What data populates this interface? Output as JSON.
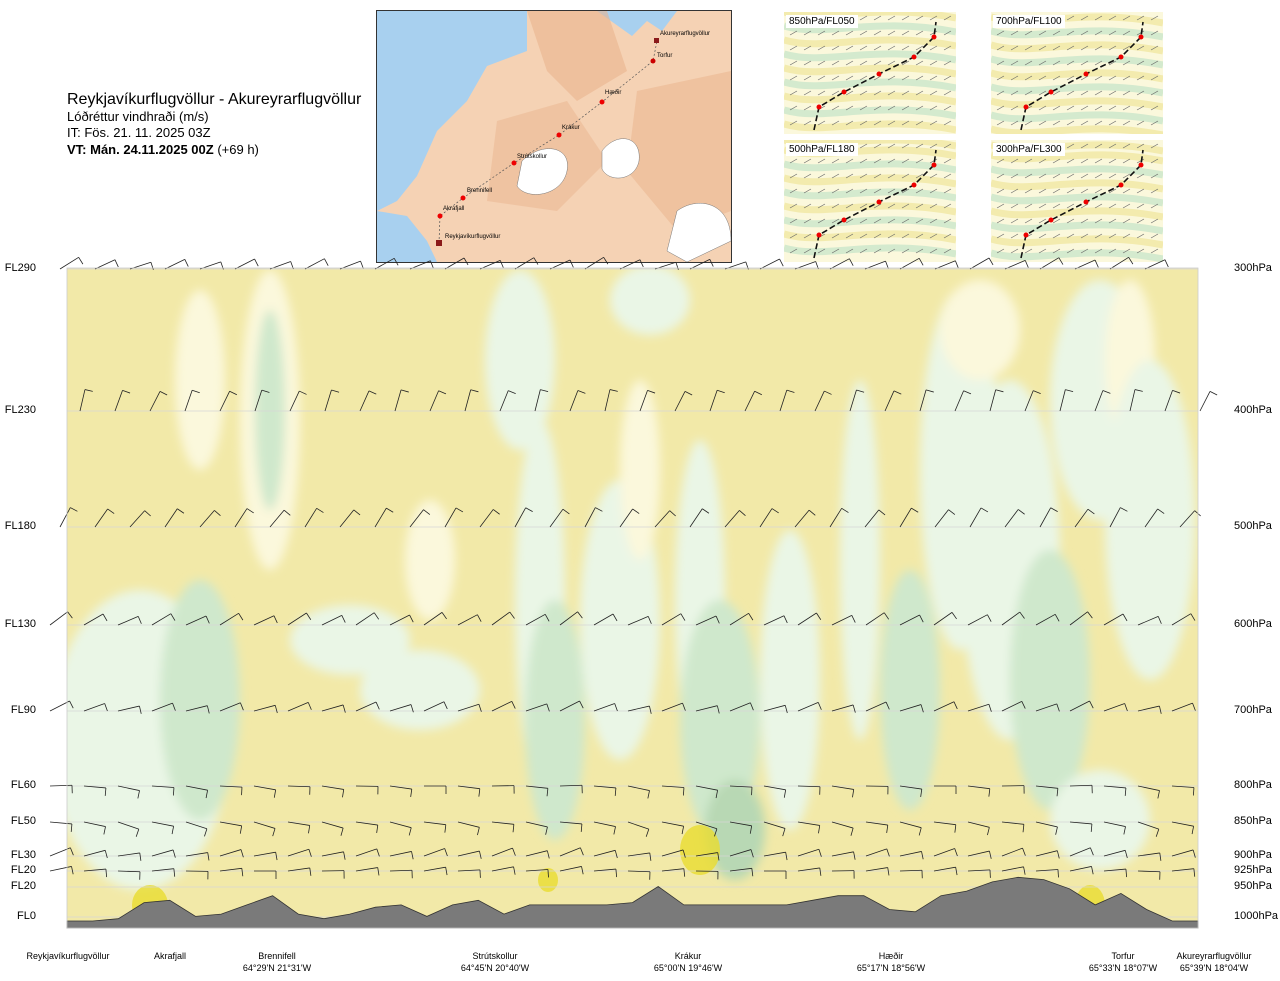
{
  "title": {
    "route": "Reykjavíkurflugvöllur - Akureyrarflugvöllur",
    "variable": "Lóðréttur vindhraði (m/s)",
    "it": "IT: Fös. 21. 11. 2025 03Z",
    "vt_bold": "VT: Mán. 24.11.2025 00Z",
    "vt_lead": "(+69 h)"
  },
  "map": {
    "labels": [
      "Akureyrarflugvöllur",
      "Torfur",
      "Hæðir",
      "Krákur",
      "Strútskollur",
      "Brennifell",
      "Akrafjall",
      "Reykjavíkurflugvöllur"
    ]
  },
  "panels": [
    "850hPa/FL050",
    "700hPa/FL100",
    "500hPa/FL180",
    "300hPa/FL300"
  ],
  "levels": [
    {
      "fl": "FL290",
      "hpa": "300hPa"
    },
    {
      "fl": "FL230",
      "hpa": "400hPa"
    },
    {
      "fl": "FL180",
      "hpa": "500hPa"
    },
    {
      "fl": "FL130",
      "hpa": "600hPa"
    },
    {
      "fl": "FL90",
      "hpa": "700hPa"
    },
    {
      "fl": "FL60",
      "hpa": "800hPa"
    },
    {
      "fl": "FL50",
      "hpa": "850hPa"
    },
    {
      "fl": "FL30",
      "hpa": "900hPa"
    },
    {
      "fl": "FL20",
      "hpa": "925hPa"
    },
    {
      "fl": "FL20",
      "hpa": "950hPa"
    },
    {
      "fl": "FL0",
      "hpa": "1000hPa"
    }
  ],
  "locations": [
    {
      "name": "Reykjavíkurflugvöllur",
      "coord": ""
    },
    {
      "name": "Akrafjall",
      "coord": ""
    },
    {
      "name": "Brennifell",
      "coord": "64°29'N 21°31'W"
    },
    {
      "name": "Strútskollur",
      "coord": "64°45'N 20°40'W"
    },
    {
      "name": "Krákur",
      "coord": "65°00'N 19°46'W"
    },
    {
      "name": "Hæðir",
      "coord": "65°17'N 18°56'W"
    },
    {
      "name": "Torfur",
      "coord": "65°33'N 18°07'W"
    },
    {
      "name": "Akureyrarflugvöllur",
      "coord": "65°39'N 18°04'W"
    }
  ],
  "colors": {
    "yellow": "#f2e9a8",
    "light_yellow": "#fbf8dc",
    "pale_green": "#eaf6e6",
    "green": "#cfe8cc",
    "dark_green": "#b8d8b4",
    "bright_yellow": "#e8dc30",
    "terrain": "#7a7a7a",
    "sea": "#a8d0ef",
    "land": "#f2c4a0"
  },
  "chart_data": {
    "type": "heatmap",
    "title": "Lóðréttur vindhraði (m/s)",
    "xlabel": "",
    "ylabel": "",
    "y_levels_hpa": [
      300,
      400,
      500,
      600,
      700,
      800,
      850,
      900,
      925,
      950,
      1000
    ],
    "y_levels_fl": [
      "FL290",
      "FL230",
      "FL180",
      "FL130",
      "FL90",
      "FL60",
      "FL50",
      "FL30",
      "FL20",
      "FL20",
      "FL0"
    ],
    "x_waypoints": [
      "Reykjavíkurflugvöllur",
      "Akrafjall",
      "Brennifell",
      "Strútskollur",
      "Krákur",
      "Hæðir",
      "Torfur",
      "Akureyrarflugvöllur"
    ],
    "terrain_profile_fl": [
      0,
      0,
      1,
      8,
      9,
      2,
      3,
      7,
      11,
      3,
      1,
      3,
      6,
      7,
      2,
      7,
      9,
      3,
      7,
      7,
      7,
      7,
      8,
      15,
      7,
      7,
      7,
      7,
      7,
      9,
      11,
      11,
      5,
      4,
      11,
      13,
      17,
      19,
      18,
      14,
      7,
      12,
      5,
      0,
      0
    ],
    "grid": true,
    "legend": "none"
  }
}
